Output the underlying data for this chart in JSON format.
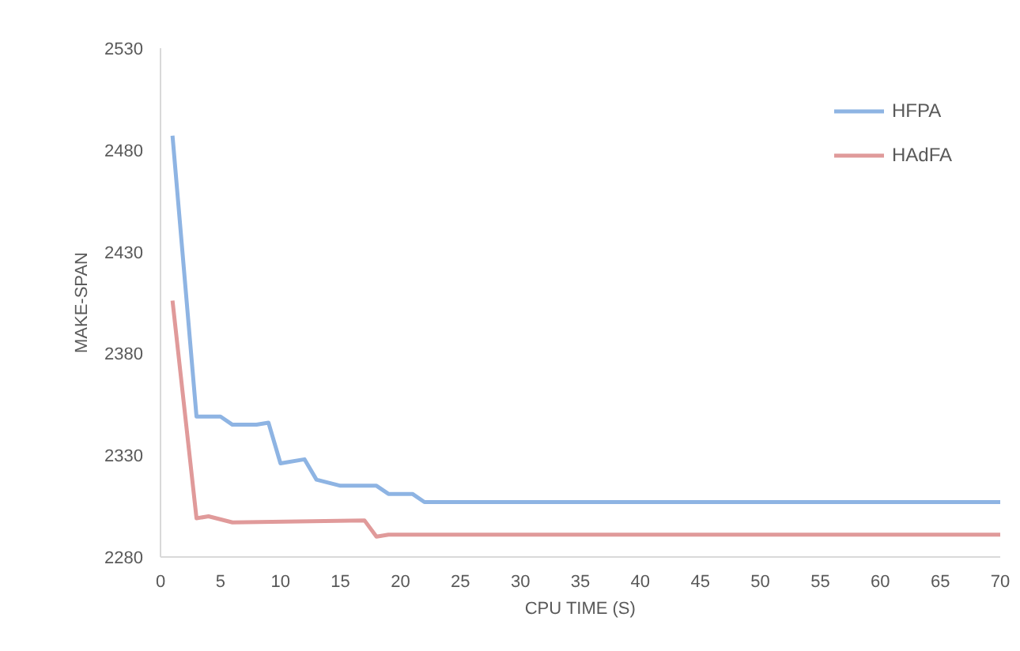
{
  "chart_data": {
    "type": "line",
    "xlabel": "CPU TIME (S)",
    "ylabel": "MAKE-SPAN",
    "xlim": [
      0,
      70
    ],
    "xticks": [
      0,
      5,
      10,
      15,
      20,
      25,
      30,
      35,
      40,
      45,
      50,
      55,
      60,
      65,
      70
    ],
    "ylim": [
      2280,
      2530
    ],
    "yticks": [
      2280,
      2330,
      2380,
      2430,
      2480,
      2530
    ],
    "grid": false,
    "legend": "top right",
    "marker": "none",
    "line_style": "solid",
    "series": [
      {
        "name": "HFPA",
        "color": "#8eb4e3",
        "x": [
          1,
          3,
          5,
          6,
          8,
          9,
          10,
          12,
          13,
          15,
          18,
          19,
          21,
          22,
          70
        ],
        "values": [
          2487,
          2349,
          2349,
          2345,
          2345,
          2346,
          2326,
          2328,
          2318,
          2315,
          2315,
          2311,
          2311,
          2307,
          2307
        ]
      },
      {
        "name": "HAdFA",
        "color": "#e09a9a",
        "x": [
          1,
          3,
          4,
          6,
          17,
          18,
          19,
          70
        ],
        "values": [
          2406,
          2299,
          2300,
          2297,
          2298,
          2290,
          2291,
          2291
        ]
      }
    ]
  }
}
